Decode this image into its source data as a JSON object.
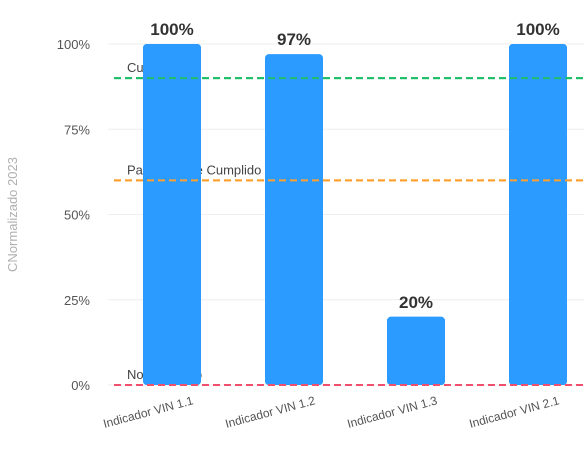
{
  "chart_data": {
    "type": "bar",
    "title": "",
    "xlabel": "",
    "ylabel": "CNormalizado 2023",
    "categories": [
      "Indicador VIN 1.1",
      "Indicador VIN 1.2",
      "Indicador VIN 1.3",
      "Indicador VIN 2.1"
    ],
    "values": [
      100,
      97,
      20,
      100
    ],
    "data_labels": [
      "100%",
      "97%",
      "20%",
      "100%"
    ],
    "ylim": [
      0,
      100
    ],
    "yticks": [
      0,
      25,
      50,
      75,
      100
    ],
    "ytick_labels": [
      "0%",
      "25%",
      "50%",
      "75%",
      "100%"
    ],
    "grid": true,
    "bar_color": "#2b9bff",
    "reference_lines": [
      {
        "value": 90,
        "label": "Cumplido",
        "color": "#1fbf6a"
      },
      {
        "value": 60,
        "label": "Parcialmente Cumplido",
        "color": "#ff9f2e"
      },
      {
        "value": 0,
        "label": "No Cumplido",
        "color": "#f0506e"
      }
    ]
  }
}
